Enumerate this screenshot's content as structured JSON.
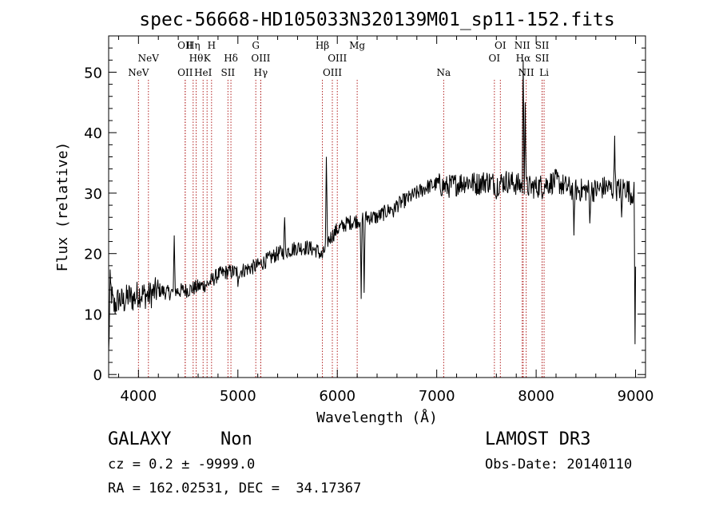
{
  "chart_data": {
    "type": "line",
    "title": "spec-56668-HD105033N320139M01_sp11-152.fits",
    "xlabel": "Wavelength (Å)",
    "ylabel": "Flux (relative)",
    "xlim": [
      3700,
      9100
    ],
    "ylim": [
      -0.5,
      56
    ],
    "xticks": [
      4000,
      5000,
      6000,
      7000,
      8000,
      9000
    ],
    "yticks": [
      0,
      10,
      20,
      30,
      40,
      50
    ],
    "xtick_labels": [
      "4000",
      "5000",
      "6000",
      "7000",
      "8000",
      "9000"
    ],
    "ytick_labels": [
      "0",
      "10",
      "20",
      "30",
      "40",
      "50"
    ],
    "spectrum_nodes": [
      [
        3700,
        3
      ],
      [
        3715,
        15
      ],
      [
        3750,
        11
      ],
      [
        3800,
        12.5
      ],
      [
        3850,
        12
      ],
      [
        3900,
        13
      ],
      [
        3950,
        12.5
      ],
      [
        4000,
        13.5
      ],
      [
        4100,
        13
      ],
      [
        4200,
        14
      ],
      [
        4300,
        13.5
      ],
      [
        4400,
        13.8
      ],
      [
        4500,
        14
      ],
      [
        4600,
        14.5
      ],
      [
        4700,
        15
      ],
      [
        4800,
        16.5
      ],
      [
        4900,
        17
      ],
      [
        5000,
        17
      ],
      [
        5100,
        17.5
      ],
      [
        5200,
        18
      ],
      [
        5300,
        19
      ],
      [
        5400,
        20
      ],
      [
        5500,
        20.5
      ],
      [
        5600,
        21
      ],
      [
        5700,
        21
      ],
      [
        5800,
        20.5
      ],
      [
        5850,
        19.5
      ],
      [
        5900,
        22
      ],
      [
        6000,
        24
      ],
      [
        6100,
        25
      ],
      [
        6200,
        25.5
      ],
      [
        6300,
        26
      ],
      [
        6400,
        26
      ],
      [
        6500,
        27
      ],
      [
        6600,
        28
      ],
      [
        6700,
        29
      ],
      [
        6800,
        30
      ],
      [
        6900,
        31
      ],
      [
        7000,
        31.5
      ],
      [
        7100,
        31
      ],
      [
        7200,
        31.5
      ],
      [
        7300,
        32
      ],
      [
        7400,
        31.5
      ],
      [
        7500,
        32
      ],
      [
        7600,
        31.5
      ],
      [
        7700,
        32
      ],
      [
        7800,
        31.5
      ],
      [
        7900,
        31
      ],
      [
        8000,
        31
      ],
      [
        8100,
        31.5
      ],
      [
        8200,
        32
      ],
      [
        8300,
        31
      ],
      [
        8400,
        30.5
      ],
      [
        8500,
        30.5
      ],
      [
        8600,
        30.5
      ],
      [
        8700,
        31
      ],
      [
        8800,
        30.5
      ],
      [
        8900,
        31
      ],
      [
        8950,
        30
      ],
      [
        9000,
        30
      ]
    ],
    "spectrum_spikes": [
      [
        4360,
        23
      ],
      [
        5000,
        14.5
      ],
      [
        5470,
        26
      ],
      [
        5890,
        36
      ],
      [
        6240,
        12.5
      ],
      [
        6270,
        13.5
      ],
      [
        6565,
        26
      ],
      [
        7600,
        29
      ],
      [
        7870,
        52
      ],
      [
        7890,
        45
      ],
      [
        8060,
        29
      ],
      [
        8380,
        23
      ],
      [
        8540,
        25
      ],
      [
        8790,
        39.5
      ],
      [
        8860,
        26
      ],
      [
        8995,
        5
      ]
    ],
    "emission_lines": [
      {
        "label": "NeV",
        "x": 4000,
        "row": 3
      },
      {
        "label": "NeV",
        "x": 4100,
        "row": 2
      },
      {
        "label": "OII",
        "x": 4470,
        "row": 3
      },
      {
        "label": "OII",
        "x": 4470,
        "row": 1
      },
      {
        "label": "Hη",
        "x": 4550,
        "row": 1
      },
      {
        "label": "Hθ",
        "x": 4580,
        "row": 2
      },
      {
        "label": "HeI",
        "x": 4650,
        "row": 3
      },
      {
        "label": "K",
        "x": 4690,
        "row": 2
      },
      {
        "label": "H",
        "x": 4735,
        "row": 1
      },
      {
        "label": "SII",
        "x": 4900,
        "row": 3
      },
      {
        "label": "Hδ",
        "x": 4930,
        "row": 2
      },
      {
        "label": "G",
        "x": 5180,
        "row": 1
      },
      {
        "label": "OIII",
        "x": 5230,
        "row": 2
      },
      {
        "label": "Hγ",
        "x": 5230,
        "row": 3
      },
      {
        "label": "Hβ",
        "x": 5850,
        "row": 1
      },
      {
        "label": "OIII",
        "x": 5950,
        "row": 3
      },
      {
        "label": "OIII",
        "x": 6000,
        "row": 2
      },
      {
        "label": "Mg",
        "x": 6200,
        "row": 1
      },
      {
        "label": "Na",
        "x": 7070,
        "row": 3
      },
      {
        "label": "OI",
        "x": 7580,
        "row": 2
      },
      {
        "label": "OI",
        "x": 7640,
        "row": 1
      },
      {
        "label": "NII",
        "x": 7860,
        "row": 1
      },
      {
        "label": "Hα",
        "x": 7870,
        "row": 2
      },
      {
        "label": "NII",
        "x": 7900,
        "row": 3
      },
      {
        "label": "SII",
        "x": 8060,
        "row": 1
      },
      {
        "label": "SII",
        "x": 8060,
        "row": 2
      },
      {
        "label": "Li",
        "x": 8080,
        "row": 3
      }
    ]
  },
  "info": {
    "object_class": "GALAXY",
    "subclass": "Non",
    "survey": "LAMOST DR3",
    "redshift": "cz = 0.2 ± -9999.0",
    "obs_date": "Obs-Date: 20140110",
    "coords": "RA = 162.02531, DEC =  34.17367"
  }
}
